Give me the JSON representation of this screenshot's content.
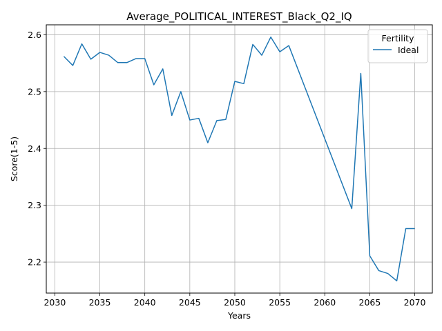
{
  "chart_data": {
    "type": "line",
    "title": "Average_POLITICAL_INTEREST_Black_Q2_IQ",
    "xlabel": "Years",
    "ylabel": "Score(1-5)",
    "xlim": [
      2029.05,
      2071.95
    ],
    "ylim": [
      2.1455,
      2.6175
    ],
    "x_ticks": [
      2030,
      2035,
      2040,
      2045,
      2050,
      2055,
      2060,
      2065,
      2070
    ],
    "y_ticks": [
      2.2,
      2.3,
      2.4,
      2.5,
      2.6
    ],
    "x_tick_labels": [
      "2030",
      "2035",
      "2040",
      "2045",
      "2050",
      "2055",
      "2060",
      "2065",
      "2070"
    ],
    "y_tick_labels": [
      "2.2",
      "2.3",
      "2.4",
      "2.5",
      "2.6"
    ],
    "grid": true,
    "legend": {
      "title": "Fertility",
      "placement": "top-right"
    },
    "series": [
      {
        "name": "Ideal",
        "color": "#1f77b4",
        "x": [
          2031,
          2032,
          2033,
          2034,
          2035,
          2036,
          2037,
          2038,
          2039,
          2040,
          2041,
          2042,
          2043,
          2044,
          2045,
          2046,
          2047,
          2048,
          2049,
          2050,
          2051,
          2052,
          2053,
          2054,
          2055,
          2056,
          2063,
          2064,
          2065,
          2066,
          2067,
          2068,
          2069,
          2070
        ],
        "y": [
          2.562,
          2.546,
          2.584,
          2.557,
          2.569,
          2.564,
          2.551,
          2.551,
          2.558,
          2.558,
          2.512,
          2.54,
          2.458,
          2.5,
          2.45,
          2.453,
          2.41,
          2.449,
          2.451,
          2.518,
          2.514,
          2.583,
          2.564,
          2.596,
          2.57,
          2.581,
          2.294,
          2.532,
          2.211,
          2.185,
          2.18,
          2.167,
          2.259,
          2.259
        ]
      }
    ]
  }
}
